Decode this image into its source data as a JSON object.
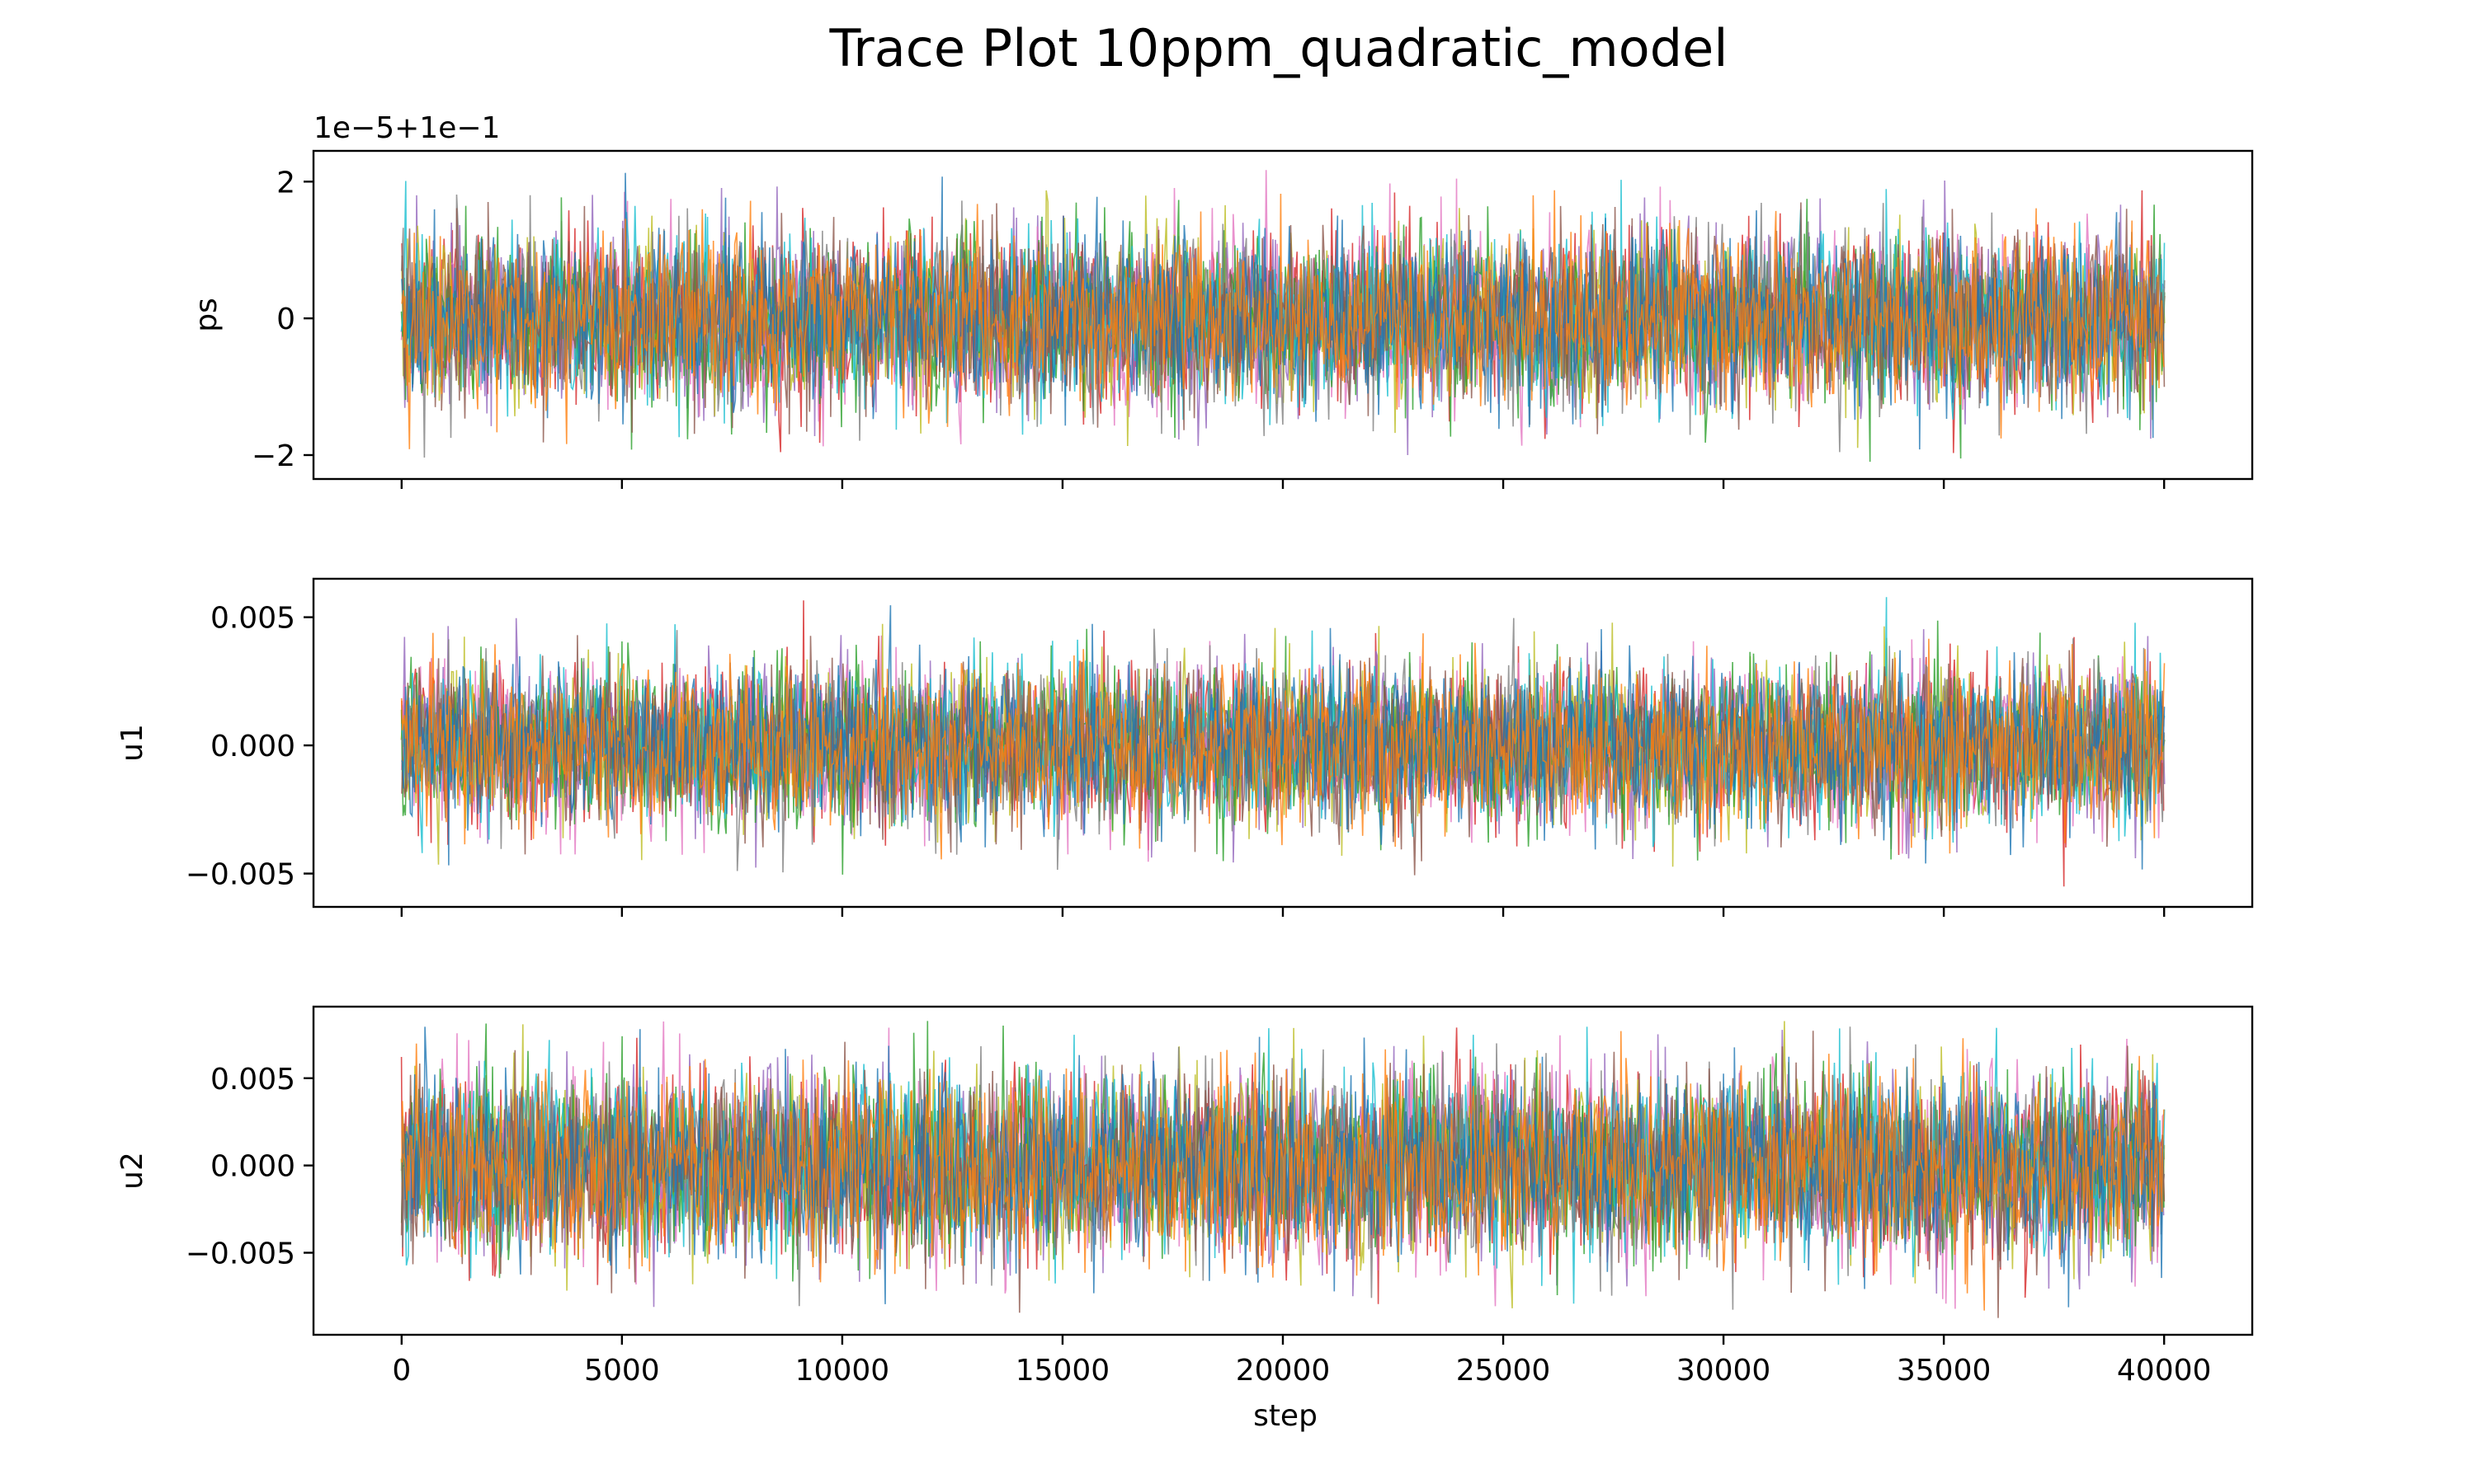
{
  "figure": {
    "title": "Trace Plot 10ppm_quadratic_model"
  },
  "series_colors": [
    "#1f77b4",
    "#ff7f0e",
    "#2ca02c",
    "#d62728",
    "#9467bd",
    "#8c564b",
    "#e377c2",
    "#7f7f7f",
    "#bcbd22",
    "#17becf"
  ],
  "chart_data": [
    {
      "type": "line",
      "panel": "ps",
      "ylabel": "ps",
      "xlabel": "",
      "offset_text": "1e−5+1e−1",
      "xlim": [
        -2000,
        42000
      ],
      "ylim": [
        -2.35,
        2.45
      ],
      "yticks": [
        -2,
        0,
        2
      ],
      "ytick_labels": [
        "−2",
        "0",
        "2"
      ],
      "xticks": [
        0,
        5000,
        10000,
        15000,
        20000,
        25000,
        30000,
        35000,
        40000
      ],
      "xtick_labels": [],
      "steps": [
        0,
        40000
      ],
      "walker_center": 0,
      "walker_band": [
        -1.0,
        1.0
      ],
      "walker_extremes": [
        -2.1,
        2.25
      ],
      "grid": false
    },
    {
      "type": "line",
      "panel": "u1",
      "ylabel": "u1",
      "xlabel": "",
      "offset_text": "",
      "xlim": [
        -2000,
        42000
      ],
      "ylim": [
        -0.0063,
        0.0065
      ],
      "yticks": [
        -0.005,
        0.0,
        0.005
      ],
      "ytick_labels": [
        "−0.005",
        "0.000",
        "0.005"
      ],
      "xticks": [
        0,
        5000,
        10000,
        15000,
        20000,
        25000,
        30000,
        35000,
        40000
      ],
      "xtick_labels": [],
      "steps": [
        0,
        40000
      ],
      "walker_center": 0,
      "walker_band": [
        -0.0025,
        0.0025
      ],
      "walker_extremes": [
        -0.0057,
        0.006
      ],
      "grid": false
    },
    {
      "type": "line",
      "panel": "u2",
      "ylabel": "u2",
      "xlabel": "step",
      "offset_text": "",
      "xlim": [
        -2000,
        42000
      ],
      "ylim": [
        -0.0097,
        0.0091
      ],
      "yticks": [
        -0.005,
        0.0,
        0.005
      ],
      "ytick_labels": [
        "−0.005",
        "0.000",
        "0.005"
      ],
      "xticks": [
        0,
        5000,
        10000,
        15000,
        20000,
        25000,
        30000,
        35000,
        40000
      ],
      "xtick_labels": [
        "0",
        "5000",
        "10000",
        "15000",
        "20000",
        "25000",
        "30000",
        "35000",
        "40000"
      ],
      "steps": [
        0,
        40000
      ],
      "walker_center": 0,
      "walker_band": [
        -0.0042,
        0.0042
      ],
      "walker_extremes": [
        -0.0088,
        0.0083
      ],
      "grid": false
    }
  ]
}
